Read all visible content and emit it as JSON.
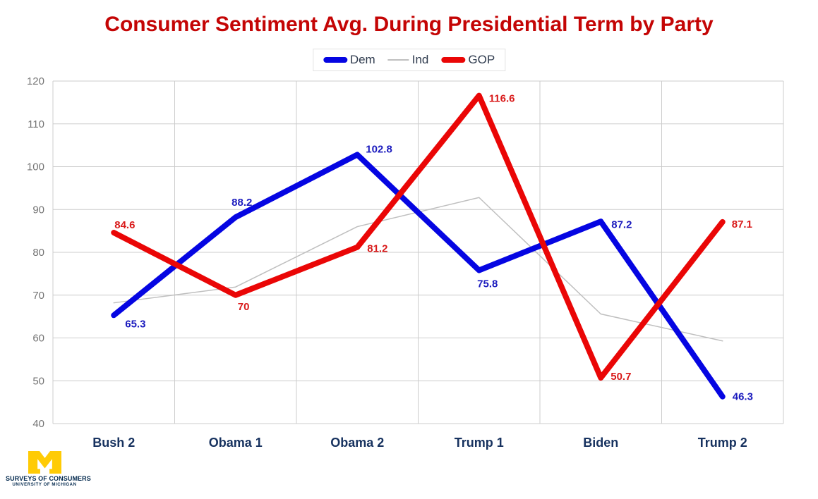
{
  "chart_data": {
    "type": "line",
    "title": "Consumer Sentiment Avg. During Presidential Term by Party",
    "categories": [
      "Bush 2",
      "Obama 1",
      "Obama 2",
      "Trump 1",
      "Biden",
      "Trump 2"
    ],
    "series": [
      {
        "name": "Dem",
        "color": "#0505e2",
        "label_color": "#1b1bbe",
        "width": 8,
        "labels_shown": true,
        "values": [
          65.3,
          88.2,
          102.8,
          75.8,
          87.2,
          46.3
        ]
      },
      {
        "name": "Ind",
        "color": "#bfbfbf",
        "label_color": "#bfbfbf",
        "width": 1.5,
        "labels_shown": false,
        "values": [
          68.2,
          71.9,
          86,
          92.8,
          65.6,
          59.3
        ]
      },
      {
        "name": "GOP",
        "color": "#ea0606",
        "label_color": "#d91a1a",
        "width": 8,
        "labels_shown": true,
        "values": [
          84.6,
          70,
          81.2,
          116.6,
          50.7,
          87.1
        ]
      }
    ],
    "y_axis": {
      "min": 40,
      "max": 120,
      "ticks": [
        40,
        50,
        60,
        70,
        80,
        90,
        100,
        110,
        120
      ],
      "tick_color": "#757575"
    },
    "x_axis": {
      "category_color": "#17325f"
    },
    "grid": true,
    "legend_position": "top"
  },
  "colors": {
    "title": "#c40505",
    "grid": "#cccccc",
    "background": "#ffffff"
  },
  "logo": {
    "line1": "SURVEYS OF CONSUMERS",
    "line2": "UNIVERSITY OF MICHIGAN",
    "m_color": "#ffcb05",
    "text_color": "#00274c"
  }
}
